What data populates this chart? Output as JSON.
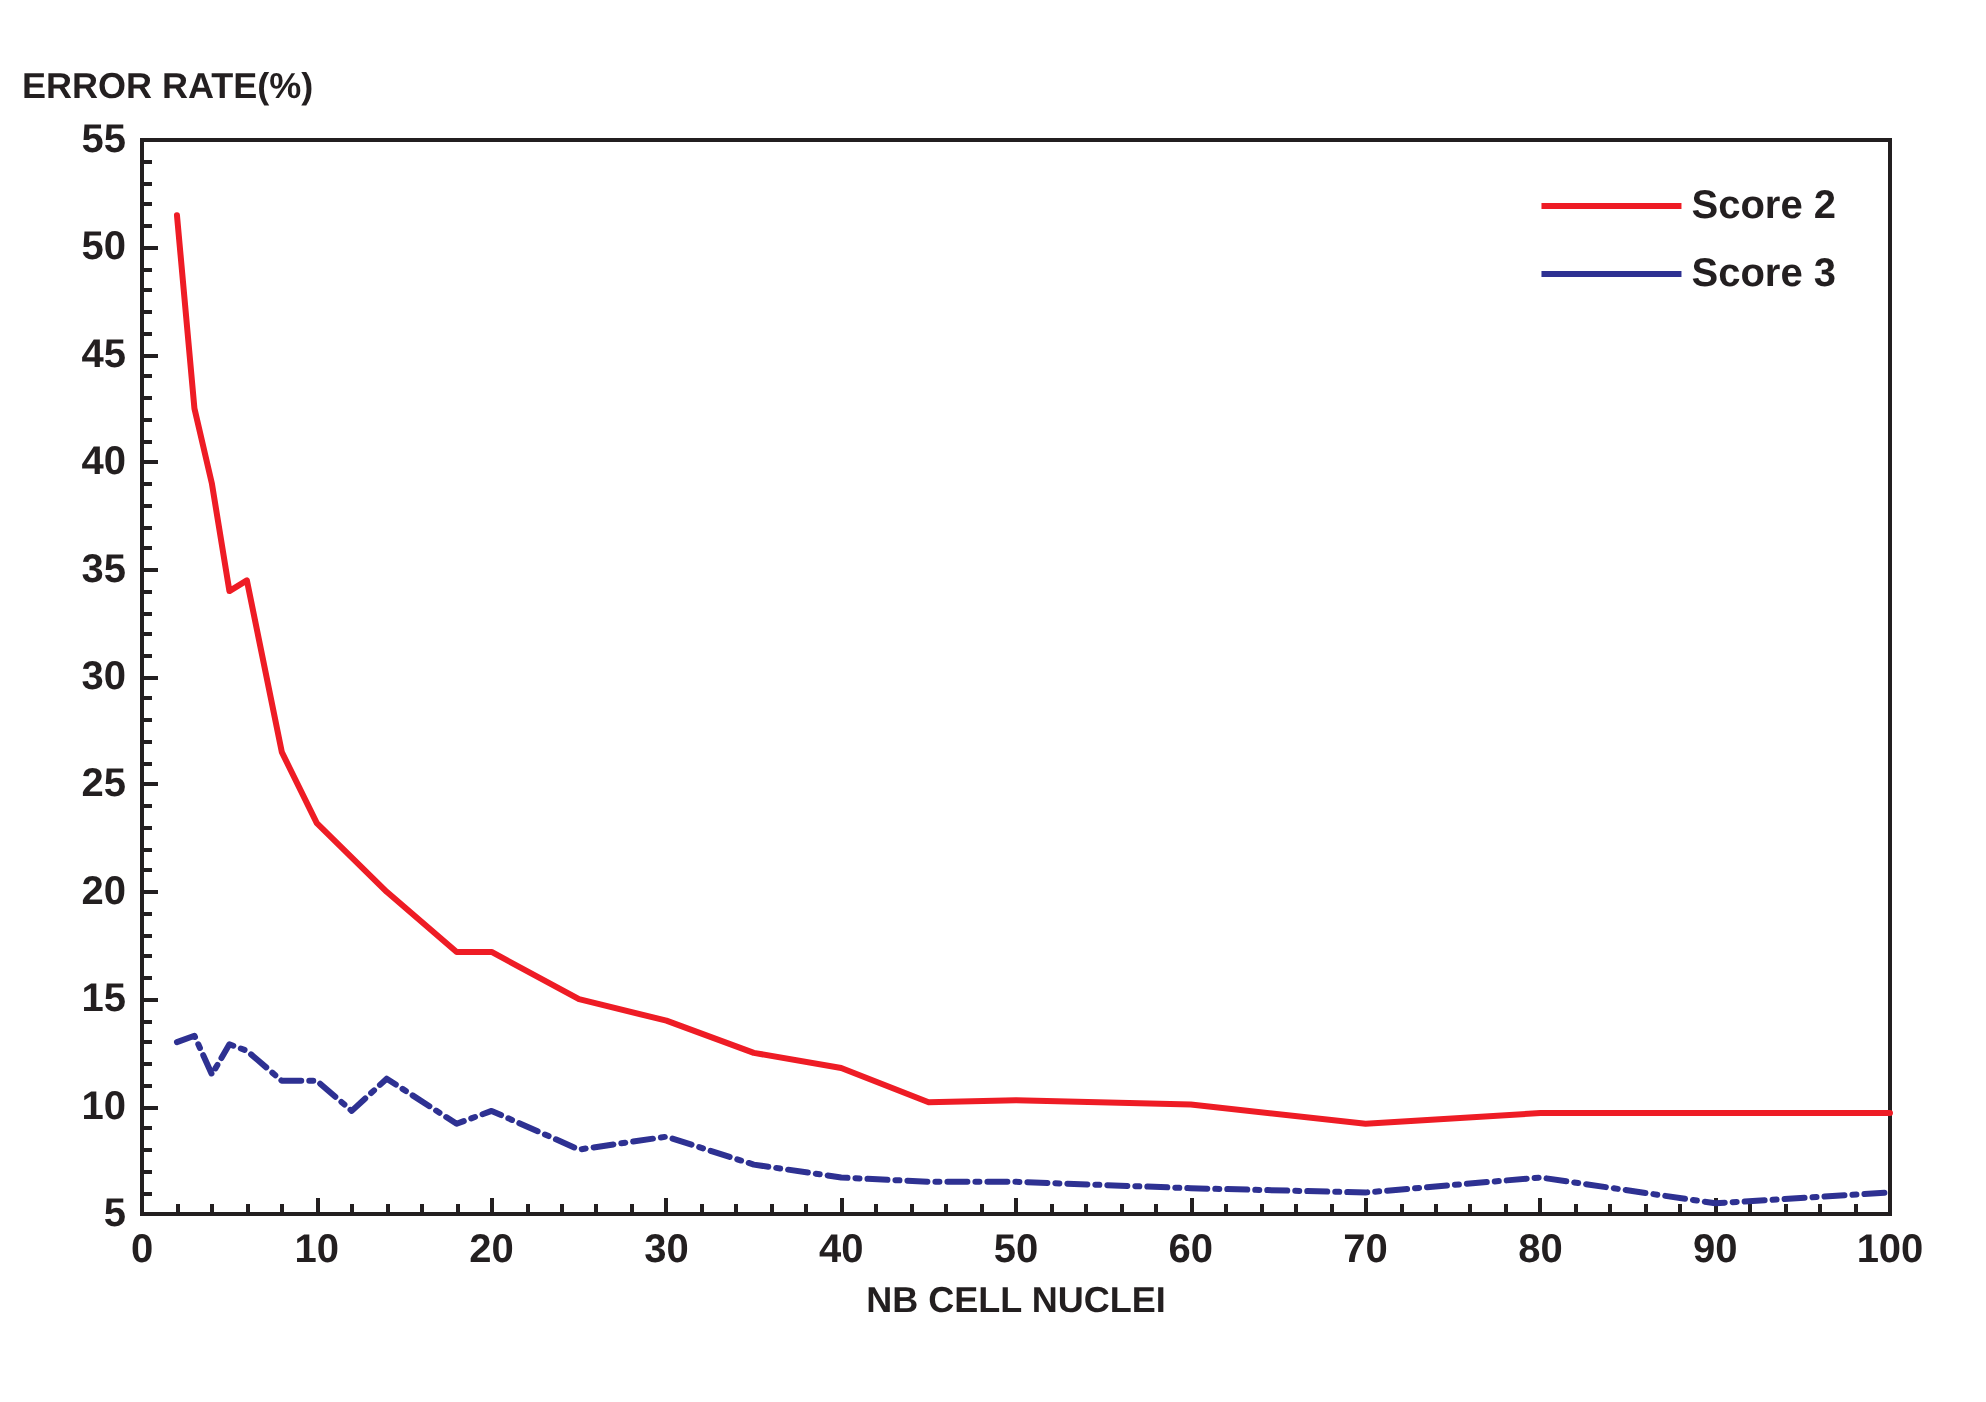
{
  "chart_data": {
    "type": "line",
    "ylabel": "ERROR RATE(%)",
    "xlabel": "NB CELL NUCLEI",
    "xlim": [
      0,
      100
    ],
    "xticks": [
      0,
      10,
      20,
      30,
      40,
      50,
      60,
      70,
      80,
      90,
      100
    ],
    "ylim": [
      5,
      55
    ],
    "yticks": [
      5,
      10,
      15,
      20,
      25,
      30,
      35,
      40,
      45,
      50,
      55
    ],
    "grid": false,
    "legend": "top right",
    "marker": "none",
    "series": [
      {
        "name": "Score 2",
        "color": "#ee1c25",
        "line_style": "solid",
        "x": [
          2,
          3,
          4,
          5,
          6,
          8,
          10,
          14,
          18,
          20,
          25,
          30,
          35,
          40,
          45,
          50,
          60,
          70,
          80,
          90,
          100
        ],
        "values": [
          51.5,
          42.5,
          39,
          34,
          34.5,
          26.5,
          23.2,
          20,
          17.2,
          17.2,
          15,
          14,
          12.5,
          11.8,
          10.2,
          10.3,
          10.1,
          9.2,
          9.7,
          9.7,
          9.7
        ]
      },
      {
        "name": "Score 3",
        "color": "#2e3192",
        "line_style": "dashed",
        "x": [
          2,
          3,
          4,
          5,
          6,
          8,
          10,
          12,
          14,
          18,
          20,
          25,
          30,
          35,
          40,
          45,
          50,
          60,
          70,
          80,
          90,
          100
        ],
        "values": [
          13,
          13.3,
          11.5,
          12.9,
          12.6,
          11.2,
          11.2,
          9.8,
          11.3,
          9.2,
          9.8,
          8,
          8.6,
          7.3,
          6.7,
          6.5,
          6.5,
          6.2,
          6,
          6.7,
          5.5,
          6
        ]
      }
    ]
  }
}
